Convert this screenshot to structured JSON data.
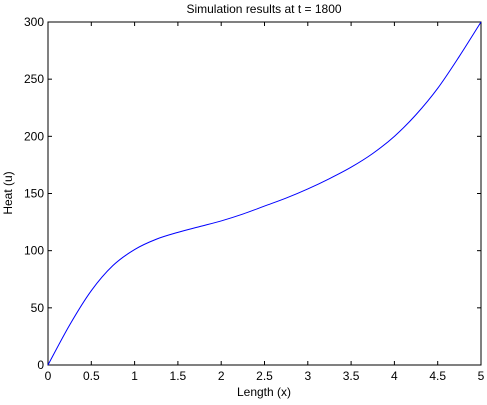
{
  "chart_data": {
    "type": "line",
    "title": "Simulation results at t = 1800",
    "xlabel": "Length (x)",
    "ylabel": "Heat (u)",
    "xlim": [
      0,
      5
    ],
    "ylim": [
      0,
      300
    ],
    "xticks": [
      0,
      0.5,
      1,
      1.5,
      2,
      2.5,
      3,
      3.5,
      4,
      4.5,
      5
    ],
    "yticks": [
      0,
      50,
      100,
      150,
      200,
      250,
      300
    ],
    "xtick_labels": [
      "0",
      "0.5",
      "1",
      "1.5",
      "2",
      "2.5",
      "3",
      "3.5",
      "4",
      "4.5",
      "5"
    ],
    "ytick_labels": [
      "0",
      "50",
      "100",
      "150",
      "200",
      "250",
      "300"
    ],
    "grid": false,
    "series": [
      {
        "color": "#0000ff",
        "x": [
          0,
          0.25,
          0.5,
          0.75,
          1.0,
          1.25,
          1.5,
          1.75,
          2.0,
          2.25,
          2.5,
          2.75,
          3.0,
          3.25,
          3.5,
          3.75,
          4.0,
          4.25,
          4.5,
          4.75,
          5.0
        ],
        "y": [
          0,
          35,
          65,
          87,
          101,
          110,
          116,
          121,
          126,
          132,
          139,
          146,
          154,
          163,
          173,
          185,
          200,
          219,
          242,
          270,
          300
        ]
      }
    ]
  }
}
